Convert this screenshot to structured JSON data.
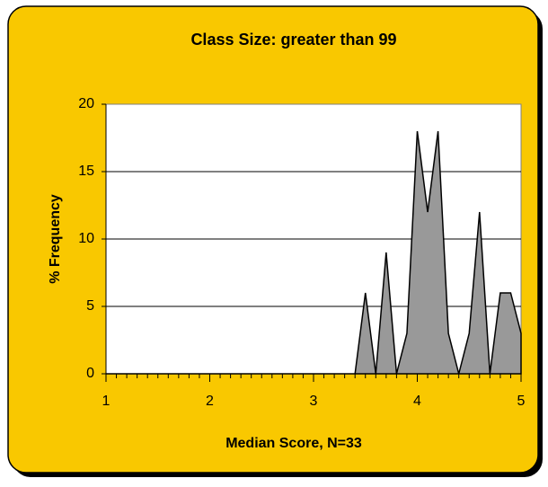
{
  "chart_data": {
    "type": "area",
    "title": "Class Size: greater than 99",
    "x_label": "Median Score, N=33",
    "y_label": "% Frequency",
    "x": [
      1.0,
      1.1,
      1.2,
      1.3,
      1.4,
      1.5,
      1.6,
      1.7,
      1.8,
      1.9,
      2.0,
      2.1,
      2.2,
      2.3,
      2.4,
      2.5,
      2.6,
      2.7,
      2.8,
      2.9,
      3.0,
      3.1,
      3.2,
      3.3,
      3.4,
      3.5,
      3.6,
      3.7,
      3.8,
      3.9,
      4.0,
      4.1,
      4.2,
      4.3,
      4.4,
      4.5,
      4.6,
      4.7,
      4.8,
      4.9,
      5.0
    ],
    "values": [
      0,
      0,
      0,
      0,
      0,
      0,
      0,
      0,
      0,
      0,
      0,
      0,
      0,
      0,
      0,
      0,
      0,
      0,
      0,
      0,
      0,
      0,
      0,
      0,
      0,
      6,
      0,
      9,
      0,
      3,
      18,
      12,
      18,
      3,
      0,
      3,
      12,
      0,
      6,
      6,
      3
    ],
    "color": "#999999",
    "xlim": [
      1,
      5
    ],
    "xticks": [
      1,
      2,
      3,
      4,
      5
    ],
    "ylim": [
      0,
      20
    ],
    "yticks": [
      0,
      5,
      10,
      15,
      20
    ],
    "grid": true
  }
}
